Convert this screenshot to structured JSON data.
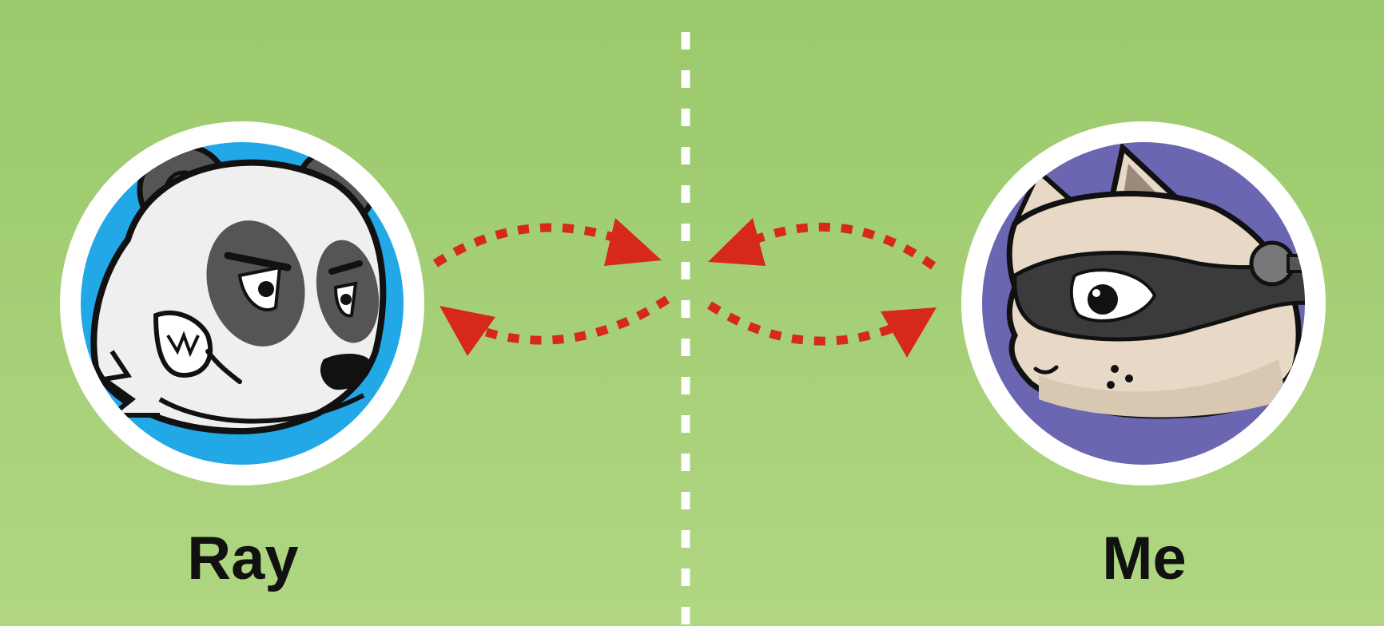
{
  "players": {
    "left": {
      "name": "Ray",
      "avatar_icon": "panda-icon",
      "badge_color": "#22a8e6"
    },
    "right": {
      "name": "Me",
      "avatar_icon": "raccoon-icon",
      "badge_color": "#6a66b2"
    }
  },
  "colors": {
    "background_top": "#9ac96b",
    "background_bottom": "#b0d682",
    "arrow": "#d7281c",
    "divider": "#ffffff"
  }
}
